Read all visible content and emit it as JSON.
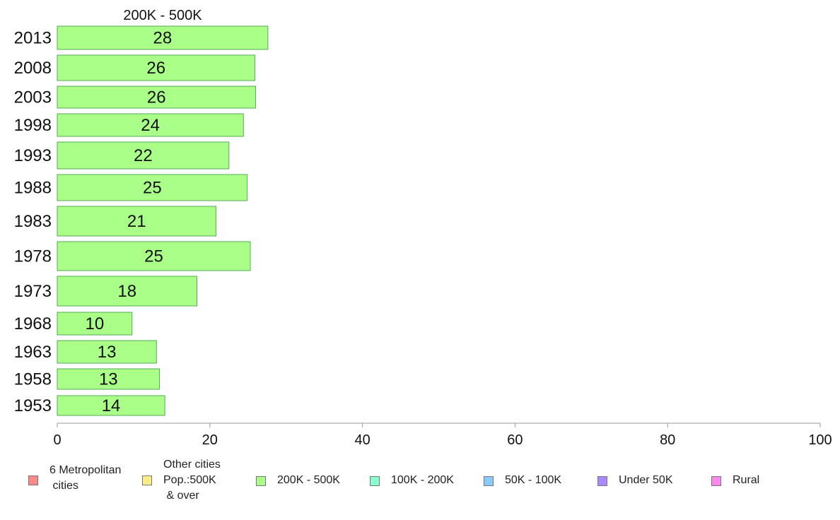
{
  "chart_data": {
    "type": "bar",
    "orientation": "horizontal",
    "title": "200K - 500K",
    "categories": [
      "2013",
      "2008",
      "2003",
      "1998",
      "1993",
      "1988",
      "1983",
      "1978",
      "1973",
      "1968",
      "1963",
      "1958",
      "1953"
    ],
    "values": [
      27.6,
      25.9,
      26.0,
      24.4,
      22.5,
      24.9,
      20.8,
      25.3,
      18.3,
      9.8,
      13.0,
      13.4,
      14.1
    ],
    "value_labels": [
      "28",
      "26",
      "26",
      "24",
      "22",
      "25",
      "21",
      "25",
      "18",
      "10",
      "13",
      "13",
      "14"
    ],
    "series_color": "#aaff88",
    "bar_border_color": "#55aa55",
    "xlim": [
      0,
      100
    ],
    "x_ticks": [
      "0",
      "20",
      "40",
      "60",
      "80",
      "100"
    ],
    "xlabel": "",
    "ylabel": "",
    "grid": false,
    "legend_position": "bottom",
    "legend": [
      {
        "label": "6 Metropolitan\n cities",
        "color": "#ff8888"
      },
      {
        "label": "Other cities\nPop.:500K\n & over",
        "color": "#ffee88"
      },
      {
        "label": "200K - 500K",
        "color": "#aaff88"
      },
      {
        "label": "100K - 200K",
        "color": "#88ffcc"
      },
      {
        "label": "50K - 100K",
        "color": "#88ccff"
      },
      {
        "label": "Under 50K",
        "color": "#aa88ff"
      },
      {
        "label": "Rural",
        "color": "#ff88ee"
      }
    ]
  }
}
